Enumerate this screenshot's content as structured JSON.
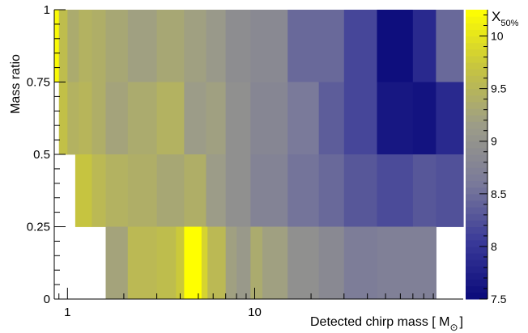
{
  "chart_data": {
    "type": "heatmap",
    "title": "",
    "xlabel": "Detected chirp mass [ M",
    "xlabel_symbol": "⊙",
    "xlabel_close": "]",
    "ylabel": "Mass ratio",
    "x_scale": "log",
    "xlim": [
      0.85,
      130
    ],
    "ylim": [
      0,
      1
    ],
    "x_tick_labels": [
      "1",
      "10"
    ],
    "x_tick_values": [
      1,
      10
    ],
    "y_tick_labels": [
      "0",
      "0.25",
      "0.5",
      "0.75",
      "1"
    ],
    "y_tick_values": [
      0,
      0.25,
      0.5,
      0.75,
      1
    ],
    "colorbar": {
      "label_main": "X",
      "label_sub": "50%",
      "min": 7.5,
      "max": 10.25,
      "tick_labels": [
        "7.5",
        "8",
        "8.5",
        "9",
        "9.5",
        "10"
      ],
      "tick_values": [
        7.5,
        8,
        8.5,
        9,
        9.5,
        10
      ],
      "color_stops": [
        "#0a0a7a",
        "#3a3a99",
        "#7a7a9a",
        "#9c9c88",
        "#c6c440",
        "#ffff00"
      ]
    },
    "rows": [
      {
        "y0": 0.75,
        "y1": 1.0,
        "cells": [
          {
            "x0": 0.85,
            "x1": 0.9,
            "v": 10.2
          },
          {
            "x0": 0.9,
            "x1": 1.0,
            "v": 9.6
          },
          {
            "x0": 1.0,
            "x1": 1.15,
            "v": 9.35
          },
          {
            "x0": 1.15,
            "x1": 1.35,
            "v": 9.45
          },
          {
            "x0": 1.35,
            "x1": 1.6,
            "v": 9.4
          },
          {
            "x0": 1.6,
            "x1": 2.1,
            "v": 9.3
          },
          {
            "x0": 2.1,
            "x1": 3.0,
            "v": 9.2
          },
          {
            "x0": 3.0,
            "x1": 4.2,
            "v": 9.3
          },
          {
            "x0": 4.2,
            "x1": 5.5,
            "v": 9.2
          },
          {
            "x0": 5.5,
            "x1": 7.0,
            "v": 9.1
          },
          {
            "x0": 7.0,
            "x1": 9.5,
            "v": 8.9
          },
          {
            "x0": 9.5,
            "x1": 15.0,
            "v": 8.85
          },
          {
            "x0": 15.0,
            "x1": 30.0,
            "v": 8.45
          },
          {
            "x0": 30.0,
            "x1": 45.0,
            "v": 8.15
          },
          {
            "x0": 45.0,
            "x1": 70.0,
            "v": 7.55
          },
          {
            "x0": 70.0,
            "x1": 93.0,
            "v": 7.85
          },
          {
            "x0": 93.0,
            "x1": 130.0,
            "v": 8.45
          }
        ]
      },
      {
        "y0": 0.5,
        "y1": 0.75,
        "cells": [
          {
            "x0": 0.9,
            "x1": 1.0,
            "v": 9.65
          },
          {
            "x0": 1.0,
            "x1": 1.15,
            "v": 9.45
          },
          {
            "x0": 1.15,
            "x1": 1.35,
            "v": 9.5
          },
          {
            "x0": 1.35,
            "x1": 1.6,
            "v": 9.4
          },
          {
            "x0": 1.6,
            "x1": 2.1,
            "v": 9.25
          },
          {
            "x0": 2.1,
            "x1": 3.0,
            "v": 9.35
          },
          {
            "x0": 3.0,
            "x1": 4.2,
            "v": 9.45
          },
          {
            "x0": 4.2,
            "x1": 5.5,
            "v": 9.15
          },
          {
            "x0": 5.5,
            "x1": 7.0,
            "v": 9.2
          },
          {
            "x0": 7.0,
            "x1": 9.5,
            "v": 8.95
          },
          {
            "x0": 9.5,
            "x1": 15.0,
            "v": 8.8
          },
          {
            "x0": 15.0,
            "x1": 22.0,
            "v": 8.6
          },
          {
            "x0": 22.0,
            "x1": 30.0,
            "v": 8.35
          },
          {
            "x0": 30.0,
            "x1": 45.0,
            "v": 8.15
          },
          {
            "x0": 45.0,
            "x1": 70.0,
            "v": 7.65
          },
          {
            "x0": 70.0,
            "x1": 93.0,
            "v": 7.6
          },
          {
            "x0": 93.0,
            "x1": 130.0,
            "v": 7.85
          }
        ]
      },
      {
        "y0": 0.25,
        "y1": 0.5,
        "cells": [
          {
            "x0": 1.1,
            "x1": 1.35,
            "v": 9.7
          },
          {
            "x0": 1.35,
            "x1": 1.6,
            "v": 9.55
          },
          {
            "x0": 1.6,
            "x1": 2.1,
            "v": 9.45
          },
          {
            "x0": 2.1,
            "x1": 3.0,
            "v": 9.4
          },
          {
            "x0": 3.0,
            "x1": 4.2,
            "v": 9.3
          },
          {
            "x0": 4.2,
            "x1": 5.5,
            "v": 9.4
          },
          {
            "x0": 5.5,
            "x1": 7.0,
            "v": 9.15
          },
          {
            "x0": 7.0,
            "x1": 9.5,
            "v": 8.95
          },
          {
            "x0": 9.5,
            "x1": 15.0,
            "v": 8.75
          },
          {
            "x0": 15.0,
            "x1": 22.0,
            "v": 8.55
          },
          {
            "x0": 22.0,
            "x1": 30.0,
            "v": 8.45
          },
          {
            "x0": 30.0,
            "x1": 45.0,
            "v": 8.3
          },
          {
            "x0": 45.0,
            "x1": 70.0,
            "v": 8.2
          },
          {
            "x0": 70.0,
            "x1": 93.0,
            "v": 8.3
          },
          {
            "x0": 93.0,
            "x1": 130.0,
            "v": 8.25
          }
        ]
      },
      {
        "y0": 0.0,
        "y1": 0.25,
        "cells": [
          {
            "x0": 1.6,
            "x1": 2.1,
            "v": 9.25
          },
          {
            "x0": 2.1,
            "x1": 3.0,
            "v": 9.55
          },
          {
            "x0": 3.0,
            "x1": 3.8,
            "v": 9.6
          },
          {
            "x0": 3.8,
            "x1": 4.2,
            "v": 9.75
          },
          {
            "x0": 4.2,
            "x1": 5.2,
            "v": 10.25
          },
          {
            "x0": 5.2,
            "x1": 5.6,
            "v": 9.85
          },
          {
            "x0": 5.6,
            "x1": 7.0,
            "v": 9.55
          },
          {
            "x0": 7.0,
            "x1": 8.0,
            "v": 9.2
          },
          {
            "x0": 8.0,
            "x1": 9.5,
            "v": 9.1
          },
          {
            "x0": 9.5,
            "x1": 11.0,
            "v": 9.35
          },
          {
            "x0": 11.0,
            "x1": 15.0,
            "v": 9.2
          },
          {
            "x0": 15.0,
            "x1": 22.0,
            "v": 8.95
          },
          {
            "x0": 22.0,
            "x1": 30.0,
            "v": 8.85
          },
          {
            "x0": 30.0,
            "x1": 45.0,
            "v": 8.65
          },
          {
            "x0": 45.0,
            "x1": 93.0,
            "v": 8.7
          }
        ]
      }
    ]
  }
}
